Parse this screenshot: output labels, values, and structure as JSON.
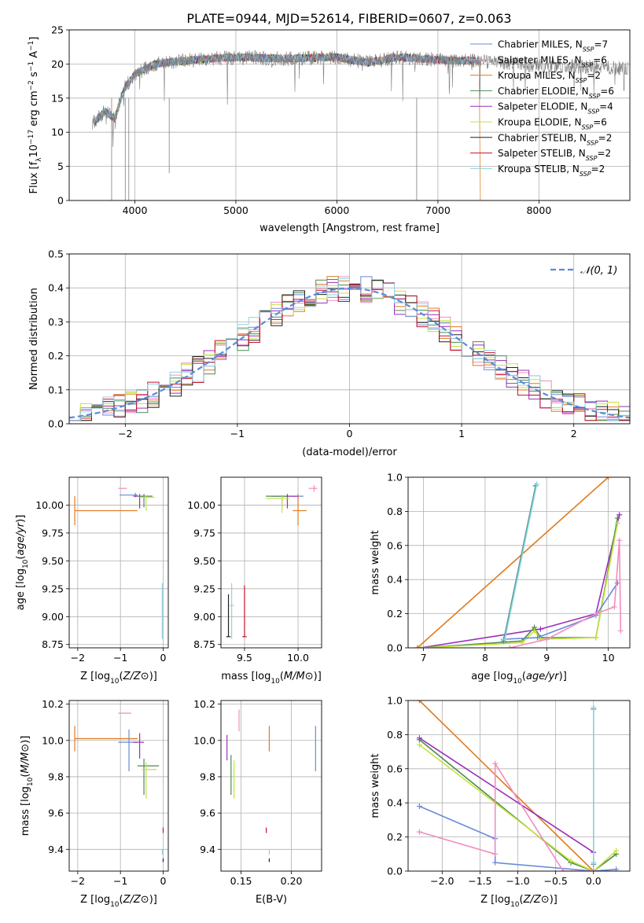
{
  "title": "PLATE=0944, MJD=52614, FIBERID=0607, z=0.063",
  "colors": {
    "data": "#7f7f7f",
    "series": [
      "#5b5b5b",
      "#8a8a8a",
      "#e07b1e",
      "#4b8a55",
      "#9b2fb7",
      "#c7e23a",
      "#222222",
      "#c8102e",
      "#8fd3e0"
    ],
    "chabrier_miles": "#6a8ad8",
    "salpeter_miles": "#f08cc0",
    "kroupa_miles": "#e07b1e",
    "chabrier_elodie": "#4b8a55",
    "salpeter_elodie": "#9b2fb7",
    "kroupa_elodie": "#c7e23a",
    "chabrier_stelib": "#222222",
    "salpeter_stelib": "#c8102e",
    "kroupa_stelib": "#7fd6dc",
    "normal": "#5b8ad8"
  },
  "legend_spectrum": [
    {
      "pre": "Chabrier MILES, N",
      "sub": "SSP",
      "post": "=7",
      "color": "#6a8ad8"
    },
    {
      "pre": "Salpeter MILES, N",
      "sub": "SSP",
      "post": "=6",
      "color": "#f08cc0"
    },
    {
      "pre": "Kroupa MILES, N",
      "sub": "SSP",
      "post": "=2",
      "color": "#e07b1e"
    },
    {
      "pre": "Chabrier ELODIE, N",
      "sub": "SSP",
      "post": "=6",
      "color": "#4b8a55"
    },
    {
      "pre": "Salpeter ELODIE, N",
      "sub": "SSP",
      "post": "=4",
      "color": "#9b2fb7"
    },
    {
      "pre": "Kroupa ELODIE, N",
      "sub": "SSP",
      "post": "=6",
      "color": "#c7e23a"
    },
    {
      "pre": "Chabrier STELIB, N",
      "sub": "SSP",
      "post": "=2",
      "color": "#222222"
    },
    {
      "pre": "Salpeter STELIB, N",
      "sub": "SSP",
      "post": "=2",
      "color": "#c8102e"
    },
    {
      "pre": "Kroupa STELIB, N",
      "sub": "SSP",
      "post": "=2",
      "color": "#8fd3e0"
    }
  ],
  "chart_data": [
    {
      "id": "spectrum",
      "type": "line",
      "xlabel": "wavelength [Angstrom, rest frame]",
      "ylabel_parts": [
        "Flux [f",
        "λ",
        "10",
        "−17",
        " erg cm",
        "−2",
        " s",
        "−1",
        " A",
        "−1",
        "]"
      ],
      "xlim": [
        3350,
        8900
      ],
      "ylim": [
        0,
        25
      ],
      "xticks": [
        4000,
        5000,
        6000,
        7000,
        8000
      ],
      "yticks": [
        0,
        5,
        10,
        15,
        20,
        25
      ],
      "series_envelope": [
        [
          3600,
          11.5
        ],
        [
          3700,
          13.0
        ],
        [
          3800,
          12.0
        ],
        [
          3900,
          16.5
        ],
        [
          4000,
          18.5
        ],
        [
          4200,
          20.0
        ],
        [
          4500,
          20.5
        ],
        [
          5000,
          21.0
        ],
        [
          5500,
          20.8
        ],
        [
          6000,
          21.0
        ],
        [
          6300,
          20.2
        ],
        [
          6600,
          21.0
        ],
        [
          7000,
          20.6
        ],
        [
          7300,
          20.5
        ],
        [
          7500,
          20.3
        ],
        [
          8000,
          19.8
        ],
        [
          8500,
          19.6
        ],
        [
          8800,
          19.4
        ]
      ]
    },
    {
      "id": "residuals",
      "type": "step",
      "xlabel": "(data-model)/error",
      "ylabel": "Normed distribution",
      "xlim": [
        -2.5,
        2.5
      ],
      "ylim": [
        0,
        0.5
      ],
      "xticks": [
        -2,
        -1,
        0,
        1,
        2
      ],
      "xtick_labels": [
        "−2",
        "−1",
        "0",
        "1",
        "2"
      ],
      "yticks": [
        0,
        0.1,
        0.2,
        0.3,
        0.4,
        0.5
      ],
      "ytick_labels": [
        "0.0",
        "0.1",
        "0.2",
        "0.3",
        "0.4",
        "0.5"
      ],
      "bin_width": 0.1,
      "reference": {
        "name": "𝒩(0, 1)",
        "mean": 0,
        "sigma": 1
      }
    },
    {
      "id": "age_vs_Z",
      "type": "errorbar",
      "xlabel": "Z [log10(Z/Z⊙)]",
      "ylabel": "age  [log10(age/yr)]",
      "xlim": [
        -2.2,
        0.12
      ],
      "ylim": [
        8.72,
        10.25
      ],
      "xticks": [
        -2,
        -1,
        0
      ],
      "xtick_labels": [
        "−2",
        "−1",
        "0"
      ],
      "yticks": [
        8.75,
        9.0,
        9.25,
        9.5,
        9.75,
        10.0
      ],
      "ytick_labels": [
        "8.75",
        "9.00",
        "9.25",
        "9.50",
        "9.75",
        "10.00"
      ],
      "points": [
        {
          "x": -2.07,
          "xlo": -2.07,
          "xhi": -0.6,
          "y": 9.95,
          "ylo": 9.82,
          "yhi": 10.08,
          "color": "#e07b1e"
        },
        {
          "x": -1.0,
          "xlo": -1.05,
          "xhi": -0.85,
          "y": 10.15,
          "ylo": 10.15,
          "yhi": 10.15,
          "color": "#f08cc0"
        },
        {
          "x": -0.65,
          "xlo": -1.02,
          "xhi": -0.6,
          "y": 10.09,
          "ylo": 10.07,
          "yhi": 10.11,
          "color": "#6a8ad8"
        },
        {
          "x": -0.55,
          "xlo": -0.7,
          "xhi": -0.45,
          "y": 10.08,
          "ylo": 9.97,
          "yhi": 10.1,
          "color": "#9b2fb7"
        },
        {
          "x": -0.45,
          "xlo": -0.6,
          "xhi": -0.25,
          "y": 10.08,
          "ylo": 9.98,
          "yhi": 10.1,
          "color": "#4b8a55"
        },
        {
          "x": -0.4,
          "xlo": -0.55,
          "xhi": -0.2,
          "y": 10.07,
          "ylo": 9.95,
          "yhi": 10.09,
          "color": "#c7e23a"
        },
        {
          "x": -0.02,
          "xlo": -0.02,
          "xhi": -0.02,
          "y": 9.1,
          "ylo": 8.8,
          "yhi": 9.3,
          "color": "#8fd3e0"
        },
        {
          "x": 0.0,
          "xlo": 0.0,
          "xhi": 0.0,
          "y": 8.82,
          "ylo": 8.82,
          "yhi": 8.82,
          "color": "#222222"
        }
      ]
    },
    {
      "id": "age_vs_mass",
      "type": "errorbar",
      "xlabel": "mass [log10(M/M⊙)]",
      "xlim": [
        9.28,
        10.22
      ],
      "ylim": [
        8.72,
        10.25
      ],
      "xticks": [
        9.5,
        10.0
      ],
      "xtick_labels": [
        "9.5",
        "10.0"
      ],
      "yticks": [
        8.75,
        9.0,
        9.25,
        9.5,
        9.75,
        10.0
      ],
      "ytick_labels": [
        "8.75",
        "9.00",
        "9.25",
        "9.50",
        "9.75",
        "10.00"
      ],
      "points": [
        {
          "x": 10.15,
          "xlo": 10.1,
          "xhi": 10.18,
          "y": 10.15,
          "ylo": 10.12,
          "yhi": 10.18,
          "color": "#f08cc0"
        },
        {
          "x": 10.0,
          "xlo": 9.88,
          "xhi": 10.05,
          "y": 10.08,
          "ylo": 10.05,
          "yhi": 10.1,
          "color": "#6a8ad8"
        },
        {
          "x": 10.0,
          "xlo": 9.95,
          "xhi": 10.08,
          "y": 9.95,
          "ylo": 9.82,
          "yhi": 10.08,
          "color": "#e07b1e"
        },
        {
          "x": 9.9,
          "xlo": 9.75,
          "xhi": 10.0,
          "y": 10.08,
          "ylo": 9.97,
          "yhi": 10.1,
          "color": "#9b2fb7"
        },
        {
          "x": 9.85,
          "xlo": 9.7,
          "xhi": 9.9,
          "y": 10.08,
          "ylo": 9.98,
          "yhi": 10.09,
          "color": "#4b8a55"
        },
        {
          "x": 9.85,
          "xlo": 9.7,
          "xhi": 9.92,
          "y": 10.06,
          "ylo": 9.93,
          "yhi": 10.09,
          "color": "#c7e23a"
        },
        {
          "x": 9.38,
          "xlo": 9.36,
          "xhi": 9.4,
          "y": 9.1,
          "ylo": 8.8,
          "yhi": 9.3,
          "color": "#8fd3e0"
        },
        {
          "x": 9.5,
          "xlo": 9.48,
          "xhi": 9.52,
          "y": 8.82,
          "ylo": 8.82,
          "yhi": 9.28,
          "color": "#c8102e"
        },
        {
          "x": 9.35,
          "xlo": 9.33,
          "xhi": 9.37,
          "y": 8.82,
          "ylo": 8.82,
          "yhi": 9.2,
          "color": "#222222"
        }
      ]
    },
    {
      "id": "mass_weight_vs_age",
      "type": "line",
      "xlabel": "age  [log10(age/yr)]",
      "ylabel": "mass weight",
      "xlim": [
        6.75,
        10.35
      ],
      "ylim": [
        0,
        1.0
      ],
      "xticks": [
        7,
        8,
        9,
        10
      ],
      "xtick_labels": [
        "7",
        "8",
        "9",
        "10"
      ],
      "yticks": [
        0,
        0.2,
        0.4,
        0.6,
        0.8,
        1.0
      ],
      "ytick_labels": [
        "0.0",
        "0.2",
        "0.4",
        "0.6",
        "0.8",
        "1.0"
      ],
      "series": [
        {
          "name": "Kroupa MILES",
          "color": "#e07b1e",
          "x": [
            6.9,
            10.0
          ],
          "y": [
            0.0,
            1.0
          ]
        },
        {
          "name": "Salpeter ELODIE",
          "color": "#9b2fb7",
          "x": [
            6.95,
            8.9,
            9.8,
            10.18
          ],
          "y": [
            0.0,
            0.11,
            0.2,
            0.78
          ]
        },
        {
          "name": "Chabrier ELODIE",
          "color": "#4b8a55",
          "x": [
            6.95,
            8.6,
            8.8,
            8.9,
            9.8,
            10.15
          ],
          "y": [
            0.0,
            0.04,
            0.12,
            0.06,
            0.06,
            0.76
          ]
        },
        {
          "name": "Kroupa ELODIE",
          "color": "#c7e23a",
          "x": [
            6.95,
            8.6,
            8.8,
            8.9,
            9.8,
            10.15
          ],
          "y": [
            0.0,
            0.03,
            0.1,
            0.05,
            0.06,
            0.73
          ]
        },
        {
          "name": "Chabrier MILES",
          "color": "#6a8ad8",
          "x": [
            8.3,
            8.85,
            9.8,
            10.15
          ],
          "y": [
            0.05,
            0.06,
            0.19,
            0.38
          ]
        },
        {
          "name": "Salpeter MILES",
          "color": "#f08cc0",
          "x": [
            8.4,
            9.0,
            9.8,
            10.1,
            10.18,
            10.2
          ],
          "y": [
            0.0,
            0.05,
            0.2,
            0.24,
            0.63,
            0.1
          ]
        },
        {
          "name": "Chabrier STELIB",
          "color": "#4f8f8f",
          "x": [
            8.3,
            8.82
          ],
          "y": [
            0.04,
            0.95
          ]
        },
        {
          "name": "Kroupa STELIB",
          "color": "#8fd3e0",
          "x": [
            8.32,
            8.84
          ],
          "y": [
            0.05,
            0.96
          ]
        }
      ]
    },
    {
      "id": "mass_vs_Z",
      "type": "errorbar",
      "xlabel": "Z [log10(Z/Z⊙)]",
      "ylabel": "mass [log10(M/M⊙)]",
      "xlim": [
        -2.2,
        0.12
      ],
      "ylim": [
        9.28,
        10.22
      ],
      "xticks": [
        -2,
        -1,
        0
      ],
      "xtick_labels": [
        "−2",
        "−1",
        "0"
      ],
      "yticks": [
        9.4,
        9.6,
        9.8,
        10.0,
        10.2
      ],
      "ytick_labels": [
        "9.4",
        "9.6",
        "9.8",
        "10.0",
        "10.2"
      ],
      "points": [
        {
          "x": -2.07,
          "xlo": -2.07,
          "xhi": -0.6,
          "y": 10.01,
          "ylo": 9.94,
          "yhi": 10.08,
          "color": "#e07b1e"
        },
        {
          "x": -1.0,
          "xlo": -1.05,
          "xhi": -0.75,
          "y": 10.15,
          "ylo": 10.15,
          "yhi": 10.15,
          "color": "#f08cc0"
        },
        {
          "x": -0.8,
          "xlo": -1.05,
          "xhi": -0.6,
          "y": 9.99,
          "ylo": 9.83,
          "yhi": 10.06,
          "color": "#6a8ad8"
        },
        {
          "x": -0.55,
          "xlo": -0.7,
          "xhi": -0.45,
          "y": 9.99,
          "ylo": 9.9,
          "yhi": 10.04,
          "color": "#9b2fb7"
        },
        {
          "x": -0.45,
          "xlo": -0.6,
          "xhi": -0.1,
          "y": 9.86,
          "ylo": 9.7,
          "yhi": 9.9,
          "color": "#4b8a55"
        },
        {
          "x": -0.4,
          "xlo": -0.5,
          "xhi": -0.15,
          "y": 9.84,
          "ylo": 9.68,
          "yhi": 9.88,
          "color": "#c7e23a"
        },
        {
          "x": 0.0,
          "xlo": 0.0,
          "xhi": 0.0,
          "y": 9.5,
          "ylo": 9.49,
          "yhi": 9.52,
          "color": "#c8102e"
        },
        {
          "x": -0.02,
          "xlo": -0.02,
          "xhi": -0.02,
          "y": 9.38,
          "ylo": 9.37,
          "yhi": 9.4,
          "color": "#8fd3e0"
        },
        {
          "x": 0.0,
          "xlo": 0.0,
          "xhi": 0.0,
          "y": 9.34,
          "ylo": 9.33,
          "yhi": 9.35,
          "color": "#222222"
        }
      ]
    },
    {
      "id": "mass_vs_ebv",
      "type": "errorbar",
      "xlabel": "E(B-V)",
      "xlim": [
        0.13,
        0.23
      ],
      "ylim": [
        9.28,
        10.22
      ],
      "xticks": [
        0.15,
        0.2
      ],
      "xtick_labels": [
        "0.15",
        "0.20"
      ],
      "yticks": [
        9.4,
        9.6,
        9.8,
        10.0,
        10.2
      ],
      "ytick_labels": [
        "9.4",
        "9.6",
        "9.8",
        "10.0",
        "10.2"
      ],
      "points": [
        {
          "x": 0.148,
          "xlo": 0.148,
          "xhi": 0.148,
          "y": 10.12,
          "ylo": 10.05,
          "yhi": 10.17,
          "color": "#f08cc0"
        },
        {
          "x": 0.224,
          "xlo": 0.224,
          "xhi": 0.224,
          "y": 9.96,
          "ylo": 9.83,
          "yhi": 10.08,
          "color": "#6a8ad8"
        },
        {
          "x": 0.178,
          "xlo": 0.178,
          "xhi": 0.178,
          "y": 10.01,
          "ylo": 9.94,
          "yhi": 10.08,
          "color": "#e07b1e"
        },
        {
          "x": 0.136,
          "xlo": 0.136,
          "xhi": 0.136,
          "y": 9.96,
          "ylo": 9.89,
          "yhi": 10.03,
          "color": "#9b2fb7"
        },
        {
          "x": 0.14,
          "xlo": 0.14,
          "xhi": 0.14,
          "y": 9.82,
          "ylo": 9.7,
          "yhi": 9.92,
          "color": "#4b8a55"
        },
        {
          "x": 0.143,
          "xlo": 0.143,
          "xhi": 0.143,
          "y": 9.8,
          "ylo": 9.68,
          "yhi": 9.89,
          "color": "#c7e23a"
        },
        {
          "x": 0.175,
          "xlo": 0.175,
          "xhi": 0.175,
          "y": 9.5,
          "ylo": 9.49,
          "yhi": 9.52,
          "color": "#c8102e"
        },
        {
          "x": 0.178,
          "xlo": 0.178,
          "xhi": 0.178,
          "y": 9.38,
          "ylo": 9.37,
          "yhi": 9.4,
          "color": "#8fd3e0"
        },
        {
          "x": 0.178,
          "xlo": 0.178,
          "xhi": 0.178,
          "y": 9.34,
          "ylo": 9.33,
          "yhi": 9.35,
          "color": "#222222"
        }
      ]
    },
    {
      "id": "mass_weight_vs_Z",
      "type": "line",
      "xlabel": "Z [log10(Z/Z⊙)]",
      "ylabel": "mass weight",
      "xlim": [
        -2.45,
        0.48
      ],
      "ylim": [
        0,
        1.0
      ],
      "xticks": [
        -2.0,
        -1.5,
        -1.0,
        -0.5,
        0.0
      ],
      "xtick_labels": [
        "−2.0",
        "−1.5",
        "−1.0",
        "−0.5",
        "0.0"
      ],
      "yticks": [
        0,
        0.2,
        0.4,
        0.6,
        0.8,
        1.0
      ],
      "ytick_labels": [
        "0.0",
        "0.2",
        "0.4",
        "0.6",
        "0.8",
        "1.0"
      ],
      "series": [
        {
          "name": "Kroupa MILES",
          "color": "#e07b1e",
          "x": [
            -2.3,
            0.0
          ],
          "y": [
            1.0,
            0.0
          ]
        },
        {
          "name": "Salpeter ELODIE",
          "color": "#9b2fb7",
          "x": [
            -2.3,
            0.0
          ],
          "y": [
            0.78,
            0.11
          ]
        },
        {
          "name": "Chabrier ELODIE",
          "color": "#4b8a55",
          "x": [
            -2.3,
            -0.3,
            0.0,
            0.3
          ],
          "y": [
            0.77,
            0.05,
            0.0,
            0.1
          ]
        },
        {
          "name": "Kroupa ELODIE",
          "color": "#c7e23a",
          "x": [
            -2.3,
            -0.3,
            0.0,
            0.3
          ],
          "y": [
            0.74,
            0.06,
            0.0,
            0.12
          ]
        },
        {
          "name": "Chabrier MILES",
          "color": "#6a8ad8",
          "x": [
            -2.3,
            -1.3,
            -1.3,
            0.0,
            0.3
          ],
          "y": [
            0.38,
            0.19,
            0.05,
            0.0,
            0.01
          ]
        },
        {
          "name": "Salpeter MILES",
          "color": "#f08cc0",
          "x": [
            -2.3,
            -1.3,
            -1.3,
            -0.4,
            0.0
          ],
          "y": [
            0.23,
            0.1,
            0.63,
            0.0,
            0.0
          ]
        },
        {
          "name": "Chabrier STELIB",
          "color": "#4f8f8f",
          "x": [
            0.0,
            0.0
          ],
          "y": [
            0.04,
            0.95
          ]
        },
        {
          "name": "Kroupa STELIB",
          "color": "#8fd3e0",
          "x": [
            0.0,
            0.0
          ],
          "y": [
            0.05,
            0.96
          ]
        }
      ]
    }
  ]
}
